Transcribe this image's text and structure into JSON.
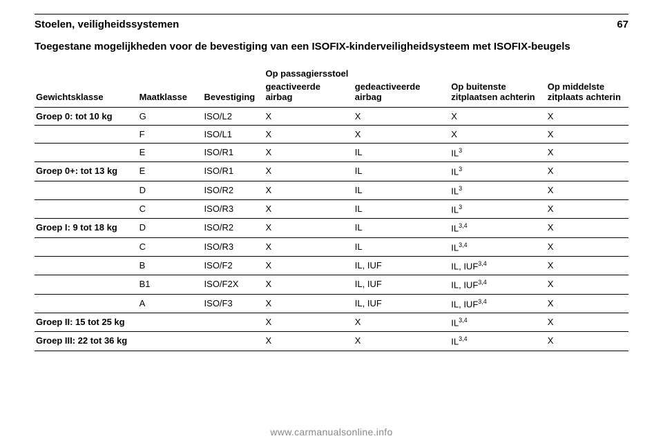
{
  "header": {
    "title": "Stoelen, veiligheidssystemen",
    "page_number": "67"
  },
  "section_title": "Toegestane mogelijkheden voor de bevestiging van een ISOFIX-kinderveiligheidsysteem met ISOFIX-beugels",
  "columns": {
    "weight": "Gewichtsklasse",
    "size": "Maatklasse",
    "fix": "Bevestiging",
    "passenger_span": "Op passagiersstoel",
    "passenger_sub1": "geactiveerde airbag",
    "passenger_sub2": "gedeacti­veerde airbag",
    "rear_outer": "Op buitenste zitplaatsen achterin",
    "rear_middle": "Op middelste zitplaats achterin"
  },
  "rows": [
    {
      "weight": "Groep 0: tot 10 kg",
      "size": "G",
      "fix": "ISO/L2",
      "p1": "X",
      "p2": "X",
      "r1": "X",
      "r2": "X"
    },
    {
      "weight": "",
      "size": "F",
      "fix": "ISO/L1",
      "p1": "X",
      "p2": "X",
      "r1": "X",
      "r2": "X"
    },
    {
      "weight": "",
      "size": "E",
      "fix": "ISO/R1",
      "p1": "X",
      "p2": "IL",
      "r1": "IL",
      "r1_sup": "3",
      "r2": "X"
    },
    {
      "weight": "Groep 0+: tot 13 kg",
      "size": "E",
      "fix": "ISO/R1",
      "p1": "X",
      "p2": "IL",
      "r1": "IL",
      "r1_sup": "3",
      "r2": "X"
    },
    {
      "weight": "",
      "size": "D",
      "fix": "ISO/R2",
      "p1": "X",
      "p2": "IL",
      "r1": "IL",
      "r1_sup": "3",
      "r2": "X"
    },
    {
      "weight": "",
      "size": "C",
      "fix": "ISO/R3",
      "p1": "X",
      "p2": "IL",
      "r1": "IL",
      "r1_sup": "3",
      "r2": "X"
    },
    {
      "weight": "Groep I: 9 tot 18 kg",
      "size": "D",
      "fix": "ISO/R2",
      "p1": "X",
      "p2": "IL",
      "r1": "IL",
      "r1_sup": "3,4",
      "r2": "X"
    },
    {
      "weight": "",
      "size": "C",
      "fix": "ISO/R3",
      "p1": "X",
      "p2": "IL",
      "r1": "IL",
      "r1_sup": "3,4",
      "r2": "X"
    },
    {
      "weight": "",
      "size": "B",
      "fix": "ISO/F2",
      "p1": "X",
      "p2": "IL, IUF",
      "r1": "IL, IUF",
      "r1_sup": "3,4",
      "r2": "X"
    },
    {
      "weight": "",
      "size": "B1",
      "fix": "ISO/F2X",
      "p1": "X",
      "p2": "IL, IUF",
      "r1": "IL, IUF",
      "r1_sup": "3,4",
      "r2": "X"
    },
    {
      "weight": "",
      "size": "A",
      "fix": "ISO/F3",
      "p1": "X",
      "p2": "IL, IUF",
      "r1": "IL, IUF",
      "r1_sup": "3,4",
      "r2": "X"
    },
    {
      "weight": "Groep II: 15 tot 25 kg",
      "size": "",
      "fix": "",
      "p1": "X",
      "p2": "X",
      "r1": "IL",
      "r1_sup": "3,4",
      "r2": "X"
    },
    {
      "weight": "Groep III: 22 tot 36 kg",
      "size": "",
      "fix": "",
      "p1": "X",
      "p2": "X",
      "r1": "IL",
      "r1_sup": "3,4",
      "r2": "X"
    }
  ],
  "footer": "www.carmanualsonline.info"
}
